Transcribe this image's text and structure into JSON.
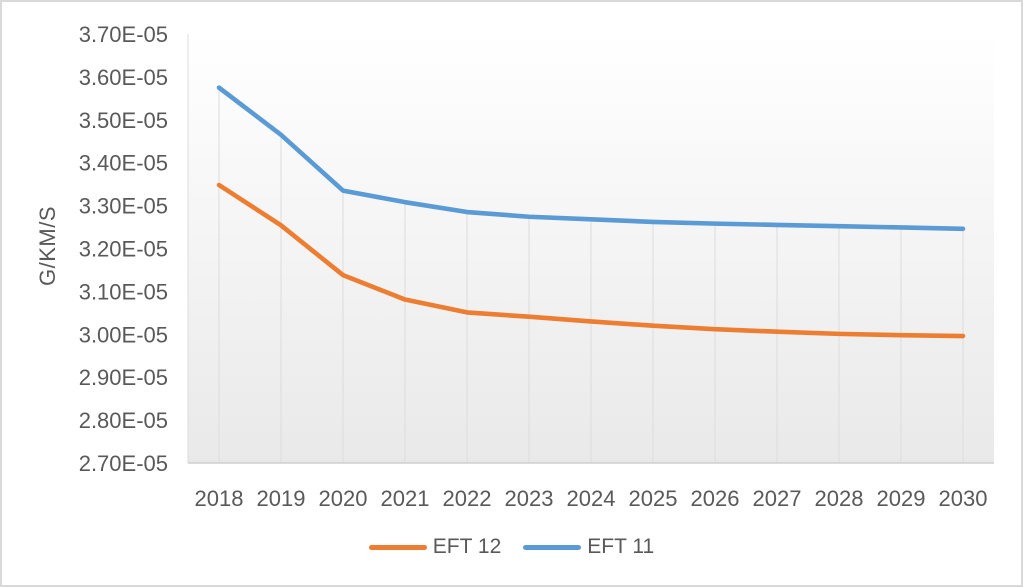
{
  "chart_data": {
    "type": "line",
    "title": "",
    "xlabel": "",
    "ylabel": "G/KM/S",
    "categories": [
      "2018",
      "2019",
      "2020",
      "2021",
      "2022",
      "2023",
      "2024",
      "2025",
      "2026",
      "2027",
      "2028",
      "2029",
      "2030"
    ],
    "series": [
      {
        "name": "EFT 12",
        "color": "#ED7D31",
        "values": [
          3.348e-05,
          3.254e-05,
          3.138e-05,
          3.081e-05,
          3.051e-05,
          3.041e-05,
          3.03e-05,
          3.02e-05,
          3.012e-05,
          3.006e-05,
          3.001e-05,
          2.998e-05,
          2.996e-05
        ]
      },
      {
        "name": "EFT 11",
        "color": "#5B9BD5",
        "values": [
          3.575e-05,
          3.465e-05,
          3.335e-05,
          3.308e-05,
          3.285e-05,
          3.274e-05,
          3.268e-05,
          3.262e-05,
          3.258e-05,
          3.255e-05,
          3.252e-05,
          3.249e-05,
          3.246e-05
        ]
      }
    ],
    "ylim": [
      2.7e-05,
      3.7e-05
    ],
    "ytick_labels": [
      "3.70E-05",
      "3.60E-05",
      "3.50E-05",
      "3.40E-05",
      "3.30E-05",
      "3.20E-05",
      "3.10E-05",
      "3.00E-05",
      "2.90E-05",
      "2.80E-05",
      "2.70E-05"
    ],
    "grid": "vertical-drop-lines",
    "legend_position": "bottom"
  },
  "style": {
    "text_color": "#595959",
    "drop_line_color": "#dcdcdc",
    "axis_line_color": "#c8c8c8",
    "plot_fill_top": "#ffffff",
    "plot_fill_bottom": "#e9e9e9",
    "frame_border_color": "#d9d9d9"
  }
}
